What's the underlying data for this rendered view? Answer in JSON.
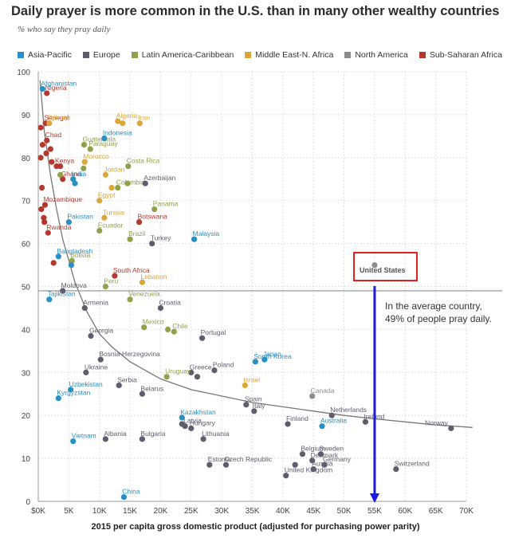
{
  "title": "Daily prayer is more common in the U.S. than in many other wealthy countries",
  "subtitle": "% who say they pray daily",
  "xlabel": "2015 per capita gross domestic product (adjusted for purchasing power parity)",
  "annotation_line1": "In the average country,",
  "annotation_line2": "49% of people pray daily.",
  "highlight_label": "United States",
  "legend": [
    {
      "name": "Asia-Pacific",
      "color": "#2a8fc4"
    },
    {
      "name": "Europe",
      "color": "#5d5d6d"
    },
    {
      "name": "Latin America-Caribbean",
      "color": "#8fa14a"
    },
    {
      "name": "Middle East-N. Africa",
      "color": "#dba73a"
    },
    {
      "name": "North America",
      "color": "#8c8c8c"
    },
    {
      "name": "Sub-Saharan Africa",
      "color": "#b5382f"
    }
  ],
  "chart_data": {
    "type": "scatter",
    "xlim": [
      0,
      70000
    ],
    "ylim": [
      0,
      100
    ],
    "x_ticks": [
      "$0K",
      "5K",
      "10K",
      "15K",
      "20K",
      "25K",
      "30K",
      "35K",
      "40K",
      "45K",
      "50K",
      "55K",
      "60K",
      "65K",
      "70K"
    ],
    "y_ticks": [
      "0",
      "10",
      "20",
      "30",
      "40",
      "50",
      "60",
      "70",
      "80",
      "90",
      "100"
    ],
    "average_line": 49,
    "trend_curve": [
      [
        300,
        98
      ],
      [
        1000,
        86
      ],
      [
        2000,
        76
      ],
      [
        3000,
        68
      ],
      [
        4000,
        61
      ],
      [
        5000,
        56
      ],
      [
        6000,
        51
      ],
      [
        8000,
        44
      ],
      [
        10000,
        39
      ],
      [
        12000,
        36
      ],
      [
        15000,
        32.5
      ],
      [
        20000,
        28.5
      ],
      [
        25000,
        26
      ],
      [
        30000,
        24.5
      ],
      [
        35000,
        23
      ],
      [
        40000,
        22
      ],
      [
        45000,
        21
      ],
      [
        50000,
        20
      ],
      [
        55000,
        19.2
      ],
      [
        60000,
        18.5
      ],
      [
        65000,
        17.8
      ],
      [
        71000,
        17.2
      ]
    ],
    "highlight_arrow": {
      "x": 55000,
      "from": 49,
      "to": 0
    },
    "points": [
      {
        "label": "Afghanistan",
        "x": 700,
        "y": 96,
        "region": "Asia-Pacific"
      },
      {
        "label": "Nigeria",
        "x": 1400,
        "y": 95,
        "region": "Sub-Saharan Africa"
      },
      {
        "label": "Senegal",
        "x": 1200,
        "y": 88,
        "region": "Sub-Saharan Africa"
      },
      {
        "label": "Djibouti",
        "x": 1800,
        "y": 88,
        "region": "Middle East-N. Africa"
      },
      {
        "label": "Algeria",
        "x": 13000,
        "y": 88.5,
        "region": "Middle East-N. Africa"
      },
      {
        "label": "Iran",
        "x": 16600,
        "y": 88,
        "region": "Middle East-N. Africa"
      },
      {
        "label": "Chad",
        "x": 1400,
        "y": 84,
        "region": "Sub-Saharan Africa"
      },
      {
        "label": "Guatemala",
        "x": 7500,
        "y": 83,
        "region": "Latin America-Caribbean"
      },
      {
        "label": "Indonesia",
        "x": 10800,
        "y": 84.5,
        "region": "Asia-Pacific"
      },
      {
        "label": "Paraguay",
        "x": 8500,
        "y": 82,
        "region": "Latin America-Caribbean"
      },
      {
        "label": "Morocco",
        "x": 7600,
        "y": 79,
        "region": "Middle East-N. Africa"
      },
      {
        "label": "Costa Rica",
        "x": 14700,
        "y": 78,
        "region": "Latin America-Caribbean"
      },
      {
        "label": "Kenya",
        "x": 3000,
        "y": 78,
        "region": "Sub-Saharan Africa"
      },
      {
        "label": "Jordan",
        "x": 11000,
        "y": 76,
        "region": "Middle East-N. Africa"
      },
      {
        "label": "Ghana",
        "x": 4000,
        "y": 75,
        "region": "Sub-Saharan Africa"
      },
      {
        "label": "India",
        "x": 5700,
        "y": 75,
        "region": "Asia-Pacific"
      },
      {
        "label": "Colombia",
        "x": 13000,
        "y": 73,
        "region": "Latin America-Caribbean"
      },
      {
        "label": "Azerbaijan",
        "x": 17500,
        "y": 74,
        "region": "Europe"
      },
      {
        "label": "Egypt",
        "x": 10000,
        "y": 70,
        "region": "Middle East-N. Africa"
      },
      {
        "label": "Mozambique",
        "x": 1100,
        "y": 69,
        "region": "Sub-Saharan Africa"
      },
      {
        "label": "Panama",
        "x": 19000,
        "y": 68,
        "region": "Latin America-Caribbean"
      },
      {
        "label": "Pakistan",
        "x": 5000,
        "y": 65,
        "region": "Asia-Pacific"
      },
      {
        "label": "Tunisia",
        "x": 10800,
        "y": 66,
        "region": "Middle East-N. Africa"
      },
      {
        "label": "Botswana",
        "x": 16500,
        "y": 65,
        "region": "Sub-Saharan Africa"
      },
      {
        "label": "Rwanda",
        "x": 1600,
        "y": 62.5,
        "region": "Sub-Saharan Africa"
      },
      {
        "label": "Ecuador",
        "x": 10000,
        "y": 63,
        "region": "Latin America-Caribbean"
      },
      {
        "label": "Brazil",
        "x": 15000,
        "y": 61,
        "region": "Latin America-Caribbean"
      },
      {
        "label": "Turkey",
        "x": 18600,
        "y": 60,
        "region": "Europe"
      },
      {
        "label": "Malaysia",
        "x": 25500,
        "y": 61,
        "region": "Asia-Pacific"
      },
      {
        "label": "Bangladesh",
        "x": 3300,
        "y": 57,
        "region": "Asia-Pacific"
      },
      {
        "label": "Bolivia",
        "x": 5500,
        "y": 56,
        "region": "Latin America-Caribbean"
      },
      {
        "label": "South Africa",
        "x": 12500,
        "y": 52.5,
        "region": "Sub-Saharan Africa"
      },
      {
        "label": "Moldova",
        "x": 4000,
        "y": 49,
        "region": "Europe"
      },
      {
        "label": "Peru",
        "x": 11000,
        "y": 50,
        "region": "Latin America-Caribbean"
      },
      {
        "label": "Lebanon",
        "x": 17000,
        "y": 51,
        "region": "Middle East-N. Africa"
      },
      {
        "label": "Tajikistan",
        "x": 1800,
        "y": 47,
        "region": "Asia-Pacific"
      },
      {
        "label": "Venezuela",
        "x": 15000,
        "y": 47,
        "region": "Latin America-Caribbean"
      },
      {
        "label": "Armenia",
        "x": 7600,
        "y": 45,
        "region": "Europe"
      },
      {
        "label": "Mexico",
        "x": 17300,
        "y": 40.5,
        "region": "Latin America-Caribbean"
      },
      {
        "label": "Croatia",
        "x": 20000,
        "y": 45,
        "region": "Europe"
      },
      {
        "label": "Chile",
        "x": 22200,
        "y": 39.5,
        "region": "Latin America-Caribbean"
      },
      {
        "label": "Georgia",
        "x": 8600,
        "y": 38.5,
        "region": "Europe"
      },
      {
        "label": "Portugal",
        "x": 26800,
        "y": 38,
        "region": "Europe"
      },
      {
        "label": "Bosnia-Herzegovina",
        "x": 10200,
        "y": 33,
        "region": "Europe"
      },
      {
        "label": "Japan",
        "x": 37000,
        "y": 33,
        "region": "Asia-Pacific"
      },
      {
        "label": "South Korea",
        "x": 35500,
        "y": 32.5,
        "region": "Asia-Pacific"
      },
      {
        "label": "Greece",
        "x": 25000,
        "y": 30,
        "region": "Europe"
      },
      {
        "label": "Ukraine",
        "x": 7800,
        "y": 30,
        "region": "Europe"
      },
      {
        "label": "Poland",
        "x": 28800,
        "y": 30.5,
        "region": "Europe"
      },
      {
        "label": "Uruguay",
        "x": 21000,
        "y": 29,
        "region": "Latin America-Caribbean"
      },
      {
        "label": "Uzbekistan",
        "x": 5300,
        "y": 26,
        "region": "Asia-Pacific"
      },
      {
        "label": "Serbia",
        "x": 13200,
        "y": 27,
        "region": "Europe"
      },
      {
        "label": "Israel",
        "x": 33800,
        "y": 27,
        "region": "Middle East-N. Africa"
      },
      {
        "label": "Belarus",
        "x": 17000,
        "y": 25,
        "region": "Europe"
      },
      {
        "label": "Kyrgyzstan",
        "x": 3300,
        "y": 24,
        "region": "Asia-Pacific"
      },
      {
        "label": "Spain",
        "x": 34000,
        "y": 22.5,
        "region": "Europe"
      },
      {
        "label": "Canada",
        "x": 44800,
        "y": 24.5,
        "region": "North America"
      },
      {
        "label": "Italy",
        "x": 35300,
        "y": 21,
        "region": "Europe"
      },
      {
        "label": "Netherlands",
        "x": 48000,
        "y": 20,
        "region": "Europe"
      },
      {
        "label": "Kazakhstan",
        "x": 23500,
        "y": 19.5,
        "region": "Asia-Pacific"
      },
      {
        "label": "Latvia",
        "x": 24000,
        "y": 17.5,
        "region": "Europe"
      },
      {
        "label": "Hungary",
        "x": 25000,
        "y": 17,
        "region": "Europe"
      },
      {
        "label": "Finland",
        "x": 40800,
        "y": 18,
        "region": "Europe"
      },
      {
        "label": "Australia",
        "x": 46400,
        "y": 17.5,
        "region": "Asia-Pacific"
      },
      {
        "label": "Ireland",
        "x": 53500,
        "y": 18.5,
        "region": "Europe"
      },
      {
        "label": "Norway",
        "x": 67500,
        "y": 17,
        "region": "Europe"
      },
      {
        "label": "Vietnam",
        "x": 5700,
        "y": 14,
        "region": "Asia-Pacific"
      },
      {
        "label": "Albania",
        "x": 11000,
        "y": 14.5,
        "region": "Europe"
      },
      {
        "label": "Bulgaria",
        "x": 17000,
        "y": 14.5,
        "region": "Europe"
      },
      {
        "label": "Lithuania",
        "x": 27000,
        "y": 14.5,
        "region": "Europe"
      },
      {
        "label": "Belgium",
        "x": 43200,
        "y": 11,
        "region": "Europe"
      },
      {
        "label": "Sweden",
        "x": 46200,
        "y": 11,
        "region": "Europe"
      },
      {
        "label": "Denmark",
        "x": 44800,
        "y": 9.5,
        "region": "Europe"
      },
      {
        "label": "Germany",
        "x": 46800,
        "y": 8.5,
        "region": "Europe"
      },
      {
        "label": "Estonia",
        "x": 28000,
        "y": 8.5,
        "region": "Europe"
      },
      {
        "label": "Czech Republic",
        "x": 30700,
        "y": 8.5,
        "region": "Europe"
      },
      {
        "label": "Austria",
        "x": 45000,
        "y": 7.5,
        "region": "Europe"
      },
      {
        "label": "Switzerland",
        "x": 58500,
        "y": 7.5,
        "region": "Europe"
      },
      {
        "label": "United Kingdom",
        "x": 40500,
        "y": 6,
        "region": "Europe"
      },
      {
        "label": "China",
        "x": 14000,
        "y": 1,
        "region": "Asia-Pacific"
      },
      {
        "label": "United States",
        "x": 55000,
        "y": 55,
        "region": "North America"
      },
      {
        "label": "",
        "x": 400,
        "y": 87,
        "region": "Sub-Saharan Africa"
      },
      {
        "label": "",
        "x": 700,
        "y": 83,
        "region": "Sub-Saharan Africa"
      },
      {
        "label": "",
        "x": 400,
        "y": 80,
        "region": "Sub-Saharan Africa"
      },
      {
        "label": "",
        "x": 1300,
        "y": 81,
        "region": "Sub-Saharan Africa"
      },
      {
        "label": "",
        "x": 2000,
        "y": 82,
        "region": "Sub-Saharan Africa"
      },
      {
        "label": "",
        "x": 2200,
        "y": 79,
        "region": "Sub-Saharan Africa"
      },
      {
        "label": "",
        "x": 3600,
        "y": 78,
        "region": "Sub-Saharan Africa"
      },
      {
        "label": "",
        "x": 600,
        "y": 73,
        "region": "Sub-Saharan Africa"
      },
      {
        "label": "",
        "x": 500,
        "y": 68,
        "region": "Sub-Saharan Africa"
      },
      {
        "label": "",
        "x": 900,
        "y": 66,
        "region": "Sub-Saharan Africa"
      },
      {
        "label": "",
        "x": 1000,
        "y": 65,
        "region": "Sub-Saharan Africa"
      },
      {
        "label": "",
        "x": 2500,
        "y": 55.5,
        "region": "Sub-Saharan Africa"
      },
      {
        "label": "",
        "x": 6000,
        "y": 74,
        "region": "Asia-Pacific"
      },
      {
        "label": "",
        "x": 5400,
        "y": 55,
        "region": "Asia-Pacific"
      },
      {
        "label": "",
        "x": 3600,
        "y": 76,
        "region": "Latin America-Caribbean"
      },
      {
        "label": "",
        "x": 7400,
        "y": 77.5,
        "region": "Latin America-Caribbean"
      },
      {
        "label": "",
        "x": 12000,
        "y": 73,
        "region": "Middle East-N. Africa"
      },
      {
        "label": "",
        "x": 13800,
        "y": 88,
        "region": "Middle East-N. Africa"
      },
      {
        "label": "",
        "x": 14600,
        "y": 74,
        "region": "Latin America-Caribbean"
      },
      {
        "label": "",
        "x": 21200,
        "y": 40,
        "region": "Latin America-Caribbean"
      },
      {
        "label": "",
        "x": 26000,
        "y": 29,
        "region": "Europe"
      },
      {
        "label": "",
        "x": 23500,
        "y": 18,
        "region": "Europe"
      },
      {
        "label": "",
        "x": 42000,
        "y": 8.5,
        "region": "Europe"
      }
    ]
  }
}
